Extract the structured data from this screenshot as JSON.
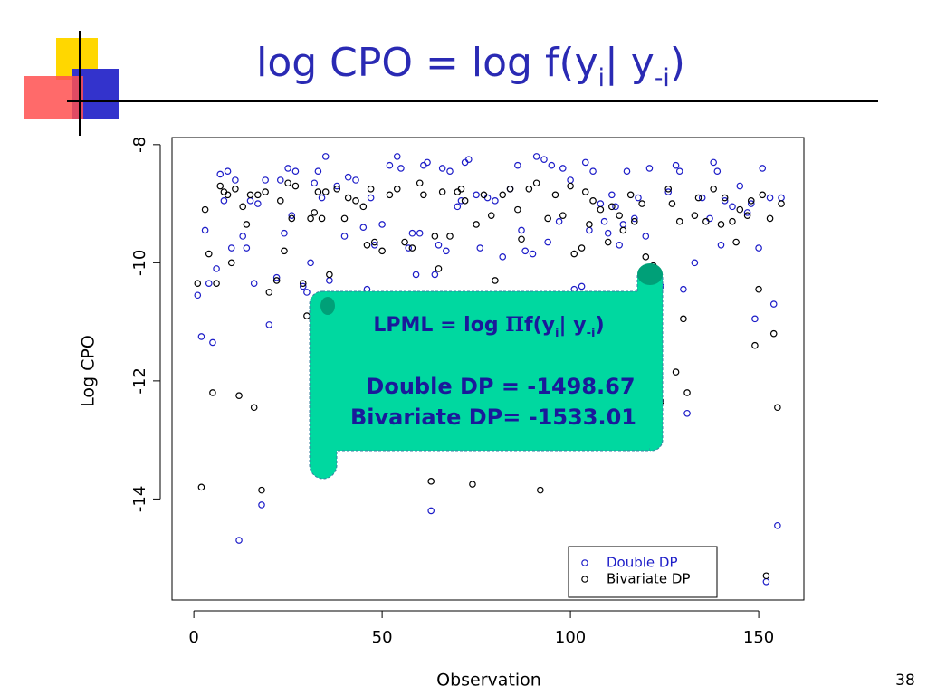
{
  "slide": {
    "title_parts": [
      {
        "text": "log CPO = log f(y"
      },
      {
        "text": "i",
        "sub": true
      },
      {
        "text": "| y"
      },
      {
        "text": "-i",
        "sub": true
      },
      {
        "text": ")"
      }
    ],
    "page_number": "38"
  },
  "callout": {
    "line1_parts": [
      {
        "text": "LPML = log "
      },
      {
        "text": "Π",
        "serif": true
      },
      {
        "text": "f(y"
      },
      {
        "text": "i",
        "sub": true
      },
      {
        "text": "| y"
      },
      {
        "text": "-i",
        "sub": true
      },
      {
        "text": ")"
      }
    ],
    "line2": "Double DP = -1498.67",
    "line3": "Bivariate DP= -1533.01"
  },
  "chart_data": {
    "type": "scatter",
    "x_label": "Observation",
    "y_label": "Log CPO",
    "xlim": [
      -5.8,
      162
    ],
    "ylim": [
      -15.71,
      -7.88
    ],
    "xticks": [
      0,
      50,
      100,
      150
    ],
    "yticks": [
      -8,
      -10,
      -12,
      -14
    ],
    "legend": "bottom-right",
    "series": [
      {
        "name": "Double DP",
        "color": "#1c1cc8",
        "x": [
          1,
          2,
          3,
          4,
          5,
          6,
          7,
          8,
          9,
          10,
          11,
          12,
          13,
          14,
          15,
          16,
          17,
          18,
          19,
          20,
          22,
          23,
          24,
          25,
          26,
          27,
          29,
          30,
          31,
          32,
          33,
          34,
          35,
          36,
          38,
          40,
          41,
          43,
          45,
          46,
          47,
          48,
          50,
          52,
          54,
          55,
          57,
          58,
          59,
          60,
          61,
          62,
          63,
          64,
          65,
          66,
          67,
          68,
          70,
          71,
          72,
          73,
          75,
          76,
          78,
          80,
          82,
          84,
          86,
          87,
          88,
          90,
          91,
          93,
          94,
          95,
          97,
          98,
          100,
          101,
          103,
          104,
          105,
          106,
          108,
          109,
          110,
          111,
          112,
          113,
          114,
          115,
          117,
          118,
          120,
          121,
          124,
          126,
          128,
          129,
          130,
          131,
          133,
          135,
          137,
          138,
          139,
          140,
          141,
          143,
          145,
          147,
          148,
          149,
          150,
          151,
          152,
          153,
          154,
          155,
          156
        ],
        "values": [
          -10.55,
          -11.25,
          -9.45,
          -10.35,
          -11.35,
          -10.1,
          -8.5,
          -8.95,
          -8.45,
          -9.75,
          -8.6,
          -14.7,
          -9.55,
          -9.75,
          -8.95,
          -10.35,
          -9.0,
          -14.1,
          -8.6,
          -11.05,
          -10.25,
          -8.6,
          -9.5,
          -8.4,
          -9.2,
          -8.45,
          -10.4,
          -10.5,
          -10.0,
          -8.65,
          -8.45,
          -8.9,
          -8.2,
          -10.3,
          -8.7,
          -9.55,
          -8.55,
          -8.6,
          -9.4,
          -10.45,
          -8.9,
          -9.7,
          -9.35,
          -8.35,
          -8.2,
          -8.4,
          -9.75,
          -9.5,
          -10.2,
          -9.5,
          -8.35,
          -8.3,
          -14.2,
          -10.2,
          -9.7,
          -8.4,
          -9.8,
          -8.45,
          -9.05,
          -8.95,
          -8.3,
          -8.25,
          -8.85,
          -9.75,
          -8.9,
          -8.95,
          -9.9,
          -8.75,
          -8.35,
          -9.45,
          -9.8,
          -9.85,
          -8.2,
          -8.25,
          -9.65,
          -8.35,
          -9.3,
          -8.4,
          -8.6,
          -10.45,
          -10.4,
          -8.3,
          -9.45,
          -8.45,
          -9.0,
          -9.3,
          -9.5,
          -8.85,
          -9.05,
          -9.7,
          -9.35,
          -8.45,
          -9.25,
          -8.9,
          -9.55,
          -8.4,
          -10.4,
          -8.8,
          -8.35,
          -8.45,
          -10.45,
          -12.55,
          -10.0,
          -8.9,
          -9.25,
          -8.3,
          -8.45,
          -9.7,
          -8.95,
          -9.05,
          -8.7,
          -9.15,
          -9.0,
          -10.95,
          -9.75,
          -8.4,
          -15.4,
          -8.9,
          -10.7,
          -14.45,
          -8.9
        ]
      },
      {
        "name": "Bivariate DP",
        "color": "#000000",
        "x": [
          1,
          2,
          3,
          4,
          5,
          6,
          7,
          8,
          9,
          10,
          11,
          12,
          13,
          14,
          15,
          16,
          17,
          18,
          19,
          20,
          22,
          23,
          24,
          25,
          26,
          27,
          29,
          30,
          31,
          32,
          33,
          34,
          35,
          36,
          38,
          40,
          41,
          43,
          45,
          46,
          47,
          48,
          50,
          52,
          54,
          56,
          58,
          59,
          60,
          61,
          63,
          64,
          65,
          66,
          68,
          70,
          71,
          72,
          74,
          75,
          77,
          79,
          80,
          82,
          84,
          86,
          87,
          89,
          91,
          92,
          94,
          96,
          98,
          100,
          101,
          103,
          104,
          105,
          106,
          108,
          110,
          111,
          113,
          114,
          116,
          117,
          119,
          120,
          122,
          124,
          126,
          127,
          128,
          129,
          130,
          131,
          133,
          134,
          136,
          138,
          140,
          141,
          143,
          144,
          145,
          147,
          148,
          149,
          150,
          151,
          152,
          153,
          154,
          155,
          156
        ],
        "values": [
          -10.35,
          -13.8,
          -9.1,
          -9.85,
          -12.2,
          -10.35,
          -8.7,
          -8.8,
          -8.85,
          -10.0,
          -8.75,
          -12.25,
          -9.05,
          -9.35,
          -8.85,
          -12.45,
          -8.85,
          -13.85,
          -8.8,
          -10.5,
          -10.3,
          -8.95,
          -9.8,
          -8.65,
          -9.25,
          -8.7,
          -10.35,
          -10.9,
          -9.25,
          -9.15,
          -8.8,
          -9.25,
          -8.8,
          -10.2,
          -8.75,
          -9.25,
          -8.9,
          -8.95,
          -9.05,
          -9.7,
          -8.75,
          -9.65,
          -9.8,
          -8.85,
          -8.75,
          -9.65,
          -9.75,
          -10.75,
          -8.65,
          -8.85,
          -13.7,
          -9.55,
          -10.1,
          -8.8,
          -9.55,
          -8.8,
          -8.75,
          -8.95,
          -13.75,
          -9.35,
          -8.85,
          -9.2,
          -10.3,
          -8.85,
          -8.75,
          -9.1,
          -9.6,
          -8.75,
          -8.65,
          -13.85,
          -9.25,
          -8.85,
          -9.2,
          -8.7,
          -9.85,
          -9.75,
          -8.8,
          -9.35,
          -8.95,
          -9.1,
          -9.65,
          -9.05,
          -9.2,
          -9.45,
          -8.85,
          -9.3,
          -9.0,
          -9.9,
          -10.05,
          -12.35,
          -8.75,
          -9.0,
          -11.85,
          -9.3,
          -10.95,
          -12.2,
          -9.2,
          -8.9,
          -9.3,
          -8.75,
          -9.35,
          -8.9,
          -9.3,
          -9.65,
          -9.1,
          -9.2,
          -8.95,
          -11.4,
          -10.45,
          -8.85,
          -15.3,
          -9.25,
          -11.2,
          -12.45,
          -9.0
        ]
      }
    ]
  }
}
